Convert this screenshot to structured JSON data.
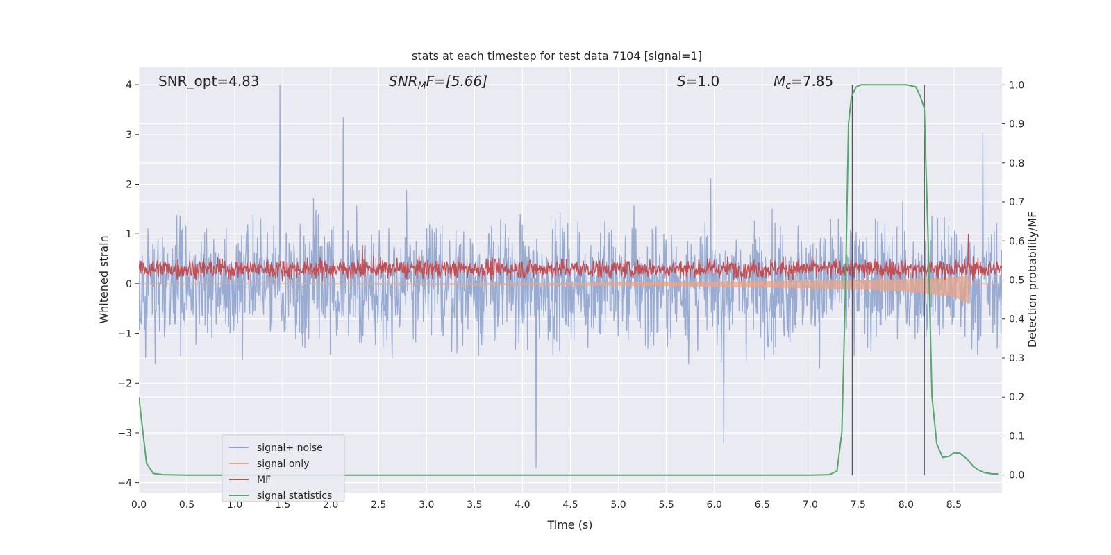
{
  "chart_data": {
    "type": "line",
    "title": "stats at each timestep for test data 7104 [signal=1]",
    "xlabel": "Time (s)",
    "ylabel_left": "Whitened strain",
    "ylabel_right": "Detection probability/MF",
    "xlim": [
      0.0,
      9.0
    ],
    "ylim_left": [
      -4.2,
      4.35
    ],
    "ylim_right": [
      -0.045,
      1.045
    ],
    "x_ticks": [
      "0.0",
      "0.5",
      "1.0",
      "1.5",
      "2.0",
      "2.5",
      "3.0",
      "3.5",
      "4.0",
      "4.5",
      "5.0",
      "5.5",
      "6.0",
      "6.5",
      "7.0",
      "7.5",
      "8.0",
      "8.5"
    ],
    "y_left_ticks": [
      "4",
      "3",
      "2",
      "1",
      "0",
      "−1",
      "−2",
      "−3",
      "−4"
    ],
    "y_right_ticks": [
      "1.0",
      "0.9",
      "0.8",
      "0.7",
      "0.6",
      "0.5",
      "0.4",
      "0.3",
      "0.2",
      "0.1",
      "0.0"
    ],
    "grid": true,
    "legend_position": "bottom-left",
    "annotations": {
      "snr_opt": "SNR_opt=4.83",
      "snr_mf_base": "SNR",
      "snr_mf_sub": "M",
      "snr_mf_rest": "F=[5.66]",
      "s_it": "S",
      "s_rest": "=1.0",
      "mc_it": "M",
      "mc_sub": "c",
      "mc_rest": "=7.85"
    },
    "vertical_lines_x": [
      7.44,
      8.19
    ],
    "series": [
      {
        "name": "signal+ noise",
        "color": "#8ea4cf",
        "axis": "left",
        "description_values": {
          "typical_range": [
            -1.5,
            1.5
          ],
          "max": 4.0,
          "min": -3.7,
          "peaks": [
            [
              1.47,
              4.0
            ],
            [
              2.13,
              3.35
            ],
            [
              4.14,
              -3.7
            ],
            [
              6.1,
              -3.2
            ],
            [
              8.8,
              3.05
            ]
          ]
        }
      },
      {
        "name": "signal only",
        "color": "#e8a58a",
        "axis": "left",
        "envelope": {
          "x": [
            0.0,
            4.0,
            5.0,
            6.0,
            7.0,
            7.5,
            8.0,
            8.5,
            8.65,
            8.66,
            9.0
          ],
          "upper": [
            0.0,
            0.0,
            0.02,
            0.03,
            0.05,
            0.06,
            0.08,
            0.12,
            0.15,
            0.0,
            0.0
          ],
          "lower": [
            0.0,
            -0.02,
            -0.03,
            -0.05,
            -0.08,
            -0.1,
            -0.15,
            -0.25,
            -0.4,
            0.0,
            0.0
          ]
        }
      },
      {
        "name": "MF",
        "color": "#c44e52",
        "axis": "left",
        "description_values": {
          "band": [
            0.05,
            0.55
          ],
          "peaks": [
            [
              2.33,
              0.78
            ],
            [
              8.65,
              1.0
            ]
          ]
        }
      },
      {
        "name": "signal statistics",
        "color": "#55a868",
        "axis": "right",
        "x": [
          0.0,
          0.08,
          0.15,
          0.25,
          0.5,
          1.0,
          2.0,
          3.0,
          4.0,
          5.0,
          6.0,
          7.0,
          7.2,
          7.28,
          7.33,
          7.37,
          7.4,
          7.43,
          7.48,
          7.53,
          7.6,
          8.0,
          8.1,
          8.15,
          8.19,
          8.23,
          8.27,
          8.32,
          8.38,
          8.45,
          8.5,
          8.56,
          8.64,
          8.7,
          8.76,
          8.82,
          8.9,
          8.96
        ],
        "values": [
          0.2,
          0.03,
          0.004,
          0.001,
          0.0,
          0.0,
          0.0,
          0.0,
          0.0,
          0.0,
          0.0,
          0.0,
          0.001,
          0.01,
          0.11,
          0.5,
          0.9,
          0.97,
          0.995,
          1.0,
          1.0,
          1.0,
          0.995,
          0.97,
          0.94,
          0.6,
          0.2,
          0.08,
          0.045,
          0.048,
          0.057,
          0.056,
          0.04,
          0.022,
          0.012,
          0.006,
          0.003,
          0.003
        ]
      }
    ]
  }
}
